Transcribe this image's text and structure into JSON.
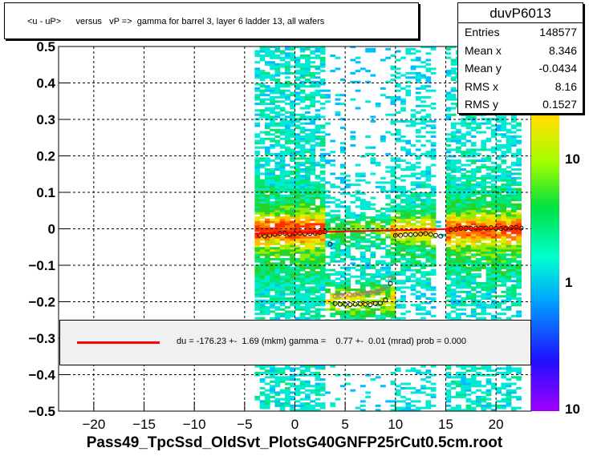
{
  "chart_data": {
    "type": "heatmap",
    "title": "<u - uP>      versus   vP =>  gamma for barrel 3, layer 6 ladder 13, all wafers",
    "xlim": [
      -23.5,
      23.5
    ],
    "ylim": [
      -0.5,
      0.5
    ],
    "x_ticks": [
      -20,
      -15,
      -10,
      -5,
      0,
      5,
      10,
      15,
      20
    ],
    "y_ticks": [
      -0.5,
      -0.4,
      -0.3,
      -0.2,
      -0.1,
      0,
      0.1,
      0.2,
      0.3,
      0.4,
      0.5
    ],
    "x_tick_labels": [
      "−20",
      "−15",
      "−10",
      "−5",
      "0",
      "5",
      "10",
      "15",
      "20"
    ],
    "y_tick_labels": [
      "−0.5",
      "−0.4",
      "−0.3",
      "−0.2",
      "−0.1",
      "0",
      "0.1",
      "0.2",
      "0.3",
      "0.4",
      "0.5"
    ],
    "grid": true,
    "color_scale": {
      "type": "log",
      "tick_labels": [
        "10",
        "1",
        "10"
      ]
    },
    "profile_black": {
      "x": [
        -3.5,
        -3,
        -2.5,
        -2,
        -1.5,
        -1,
        -0.5,
        0,
        0.5,
        1,
        1.5,
        2,
        2.5,
        3,
        3.5,
        4,
        4.5,
        5,
        5.5,
        6,
        6.5,
        7,
        7.5,
        8,
        8.5,
        9,
        9.5,
        10,
        10.5,
        11,
        11.5,
        12,
        12.5,
        13,
        13.5,
        14,
        14.5,
        15.5,
        16,
        16.5,
        17,
        17.5,
        18,
        18.5,
        19,
        19.5,
        20,
        20.5,
        21,
        21.5,
        22,
        22.5
      ],
      "y": [
        -0.018,
        -0.02,
        -0.018,
        -0.015,
        -0.013,
        -0.012,
        -0.015,
        -0.013,
        -0.012,
        -0.014,
        -0.013,
        -0.012,
        -0.01,
        -0.008,
        -0.042,
        -0.205,
        -0.207,
        -0.207,
        -0.208,
        -0.207,
        -0.206,
        -0.207,
        -0.208,
        -0.205,
        -0.204,
        -0.195,
        -0.15,
        -0.018,
        -0.018,
        -0.016,
        -0.016,
        -0.015,
        -0.014,
        -0.013,
        -0.015,
        -0.018,
        -0.02,
        -0.002,
        -0.001,
        0.001,
        0.001,
        0.001,
        0.002,
        0.002,
        0.002,
        0.003,
        0.001,
        0.001,
        0.002,
        0.003,
        0.004,
        0.002
      ]
    },
    "profile_pink": {
      "x": [
        4,
        4.5,
        5,
        5.5,
        6,
        6.5,
        7,
        7.5,
        8,
        8.5,
        9,
        9.5
      ],
      "y": [
        -0.185,
        -0.183,
        -0.182,
        -0.181,
        -0.18,
        -0.178,
        -0.176,
        -0.175,
        -0.173,
        -0.17,
        -0.16,
        -0.135
      ]
    },
    "fit_line": {
      "x": [
        -4,
        22.5
      ],
      "y": [
        -0.013,
        0.004
      ]
    }
  },
  "stats": {
    "name": "duvP6013",
    "rows": [
      {
        "label": "Entries",
        "value": "148577"
      },
      {
        "label": "Mean x",
        "value": "8.346"
      },
      {
        "label": "Mean y",
        "value": "-0.0434"
      },
      {
        "label": "RMS x",
        "value": "8.16"
      },
      {
        "label": "RMS y",
        "value": "0.1527"
      }
    ]
  },
  "legend": {
    "text": "du = -176.23 +-  1.69 (mkm) gamma =    0.77 +-  0.01 (mrad) prob = 0.000"
  },
  "footer": "Pass49_TpcSsd_OldSvt_PlotsG40GNFP25rCut0.5cm.root",
  "colors": {
    "fit": "#ff0000",
    "frame": "#000000",
    "legend_bg": "#f0f0f0"
  }
}
